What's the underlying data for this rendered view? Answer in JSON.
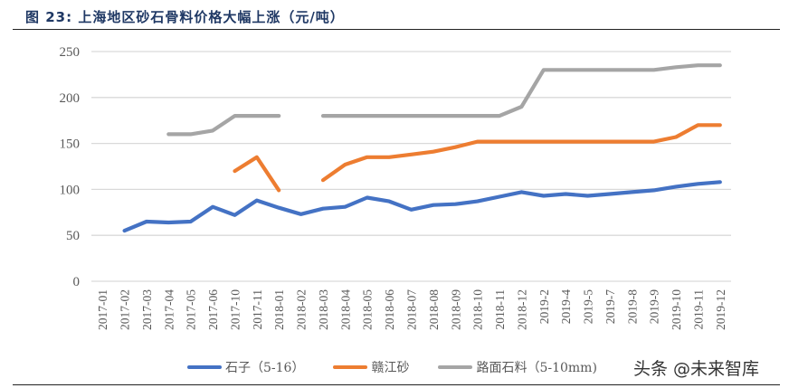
{
  "title": "图 23:  上海地区砂石骨料价格大幅上涨（元/吨）",
  "watermark": "头条 @未来智库",
  "colors": {
    "series_1": "#4472c4",
    "series_2": "#ed7d31",
    "series_3": "#a5a5a5",
    "grid": "#d9d9d9",
    "title": "#1f3864"
  },
  "legend": [
    {
      "label": "石子（5-16）",
      "color": "#4472c4"
    },
    {
      "label": "赣江砂",
      "color": "#ed7d31"
    },
    {
      "label": "路面石料（5-10mm)",
      "color": "#a5a5a5"
    }
  ],
  "chart_data": {
    "type": "line",
    "title": "上海地区砂石骨料价格大幅上涨（元/吨）",
    "xlabel": "",
    "ylabel": "元/吨",
    "ylim": [
      0,
      250
    ],
    "yticks": [
      0,
      50,
      100,
      150,
      200,
      250
    ],
    "grid": true,
    "legend_position": "bottom",
    "categories": [
      "2017-01",
      "2017-02",
      "2017-03",
      "2017-04",
      "2017-05",
      "2017-06",
      "2017-10",
      "2017-11",
      "2018-01",
      "2018-02",
      "2018-03",
      "2018-04",
      "2018-05",
      "2018-06",
      "2018-07",
      "2018-08",
      "2018-09",
      "2018-10",
      "2018-11",
      "2018-12",
      "2019-2",
      "2019-4",
      "2019-5",
      "2019-7",
      "2019-8",
      "2019-9",
      "2019-10",
      "2019-11",
      "2019-12"
    ],
    "series": [
      {
        "name": "石子（5-16）",
        "color": "#4472c4",
        "values": [
          null,
          55,
          65,
          64,
          65,
          81,
          72,
          88,
          80,
          73,
          79,
          81,
          91,
          87,
          78,
          83,
          84,
          87,
          92,
          97,
          93,
          95,
          93,
          95,
          97,
          99,
          103,
          106,
          108
        ]
      },
      {
        "name": "赣江砂",
        "color": "#ed7d31",
        "values": [
          null,
          null,
          null,
          null,
          null,
          null,
          120,
          135,
          99,
          null,
          110,
          127,
          135,
          135,
          138,
          141,
          146,
          152,
          152,
          152,
          152,
          152,
          152,
          152,
          152,
          152,
          157,
          170,
          170
        ]
      },
      {
        "name": "路面石料（5-10mm)",
        "color": "#a5a5a5",
        "values": [
          null,
          null,
          null,
          160,
          160,
          164,
          180,
          180,
          180,
          null,
          180,
          180,
          180,
          180,
          180,
          180,
          180,
          180,
          180,
          190,
          230,
          230,
          230,
          230,
          230,
          230,
          233,
          235,
          235
        ]
      }
    ]
  }
}
